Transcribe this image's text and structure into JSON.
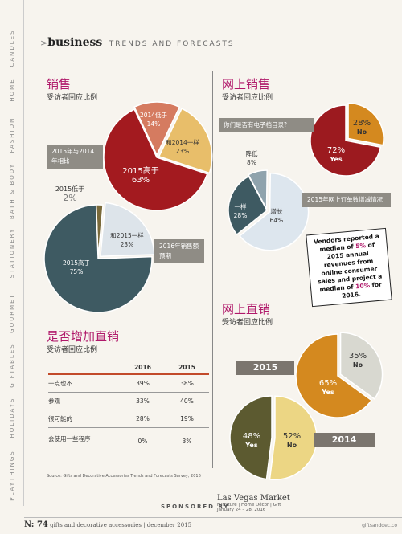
{
  "nav": [
    "CANDLES",
    "HOME",
    "FASHION",
    "BATH & BODY",
    "STATIONERY",
    "GOURMET",
    "GIFTABLES",
    "HOLIDAYS",
    "PLAYTHINGS"
  ],
  "header": {
    "arrow": ">",
    "keyword": "business",
    "subtitle": "TRENDS AND FORECASTS"
  },
  "sections": {
    "retail": {
      "title": "销售",
      "subtitle": "受访者回应比例",
      "pie1": {
        "ribbon": [
          "2015年与2014",
          "年相比"
        ],
        "slices": [
          {
            "label": "2014低于",
            "value": "14%",
            "pct": 14,
            "color": "#d57b60"
          },
          {
            "label": "和2014一样",
            "value": "23%",
            "pct": 23,
            "color": "#e8be6a"
          },
          {
            "label": "2015高于",
            "value": "63%",
            "pct": 63,
            "color": "#a31a1f"
          }
        ]
      },
      "pie2": {
        "ribbon": [
          "2016年销售额",
          "预期"
        ],
        "slices": [
          {
            "label": "2015低于",
            "value": "2%",
            "pct": 2,
            "color": "#7a6a3a"
          },
          {
            "label": "和2015一样",
            "value": "23%",
            "pct": 23,
            "color": "#dde4ea"
          },
          {
            "label": "2015高于",
            "value": "75%",
            "pct": 75,
            "color": "#3e5a62"
          }
        ]
      }
    },
    "online": {
      "title": "网上销售",
      "subtitle": "受访者回应比例",
      "pie1": {
        "ribbon": "你们是否有电子档目录?",
        "slices": [
          {
            "label": "No",
            "value": "28%",
            "pct": 28,
            "color": "#d4891f"
          },
          {
            "label": "Yes",
            "value": "72%",
            "pct": 72,
            "color": "#9c1a1f"
          }
        ]
      },
      "pie2": {
        "ribbon": "2015年网上订单数增减情况",
        "slices": [
          {
            "label": "降低",
            "value": "8%",
            "pct": 8,
            "color": "#8fa3ad"
          },
          {
            "label": "增长",
            "value": "64%",
            "pct": 64,
            "color": "#dde6ee"
          },
          {
            "label": "一样",
            "value": "28%",
            "pct": 28,
            "color": "#3e5a62"
          }
        ]
      },
      "note": {
        "pre": "Vendors reported a median of ",
        "p1": "5%",
        "mid": " of 2015 annual revenues from online consumer sales and project a median of ",
        "p2": "10%",
        "post": " for 2016."
      }
    },
    "direct": {
      "title": "是否增加直销",
      "subtitle": "受访者回应比例",
      "table": {
        "headers": [
          "",
          "2016",
          "2015"
        ],
        "rows": [
          [
            "一点也不",
            "39%",
            "38%"
          ],
          [
            "参观",
            "33%",
            "40%"
          ],
          [
            "很可能的",
            "28%",
            "19%"
          ],
          [
            "会使用一些程序",
            "0%",
            "3%"
          ]
        ]
      }
    },
    "online_direct": {
      "title": "网上直销",
      "subtitle": "受访者回应比例",
      "pie1": {
        "ribbon": "2015",
        "slices": [
          {
            "label": "No",
            "value": "35%",
            "pct": 35,
            "color": "#d8d8d0"
          },
          {
            "label": "Yes",
            "value": "65%",
            "pct": 65,
            "color": "#d4891f"
          }
        ]
      },
      "pie2": {
        "ribbon": "2014",
        "slices": [
          {
            "label": "No",
            "value": "52%",
            "pct": 52,
            "color": "#ecd684"
          },
          {
            "label": "Yes",
            "value": "48%",
            "pct": 48,
            "color": "#5c5a30"
          }
        ]
      }
    }
  },
  "source": "Source: Gifts and Decorative Accessories Trends and Forecasts Survey, 2016",
  "sponsor": {
    "label": "SPONSORED BY",
    "name": "Las Vegas Market",
    "cats": "Furniture | Home Décor | Gift",
    "dates": "January 24 – 28, 2016"
  },
  "footer": {
    "page": "N: 74",
    "mag": "gifts and decorative accessories",
    "date": "december 2015",
    "url": "giftsanddec.co"
  }
}
